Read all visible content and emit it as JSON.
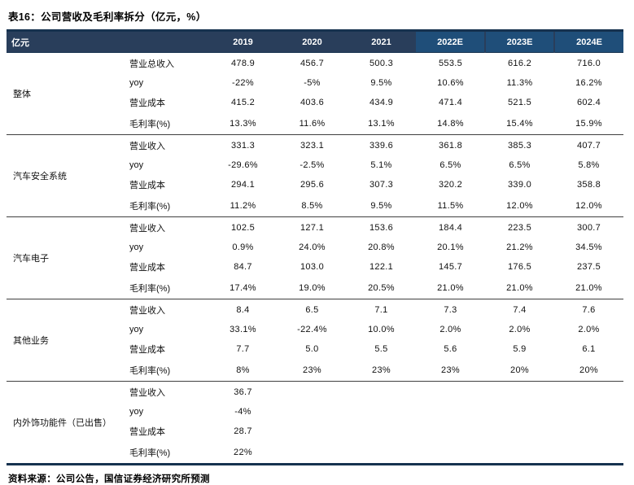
{
  "title": "表16：公司营收及毛利率拆分（亿元，%）",
  "source": "资料来源：公司公告，国信证券经济研究所预测",
  "colors": {
    "header_dark": "#293e5b",
    "header_light": "#1f4e79",
    "line_navy": "#16324f"
  },
  "header": {
    "unit_label": "亿元",
    "years": [
      "2019",
      "2020",
      "2021",
      "2022E",
      "2023E",
      "2024E"
    ]
  },
  "sections": [
    {
      "group": "整体",
      "rows": [
        {
          "label": "营业总收入",
          "values": [
            "478.9",
            "456.7",
            "500.3",
            "553.5",
            "616.2",
            "716.0"
          ]
        },
        {
          "label": "yoy",
          "values": [
            "-22%",
            "-5%",
            "9.5%",
            "10.6%",
            "11.3%",
            "16.2%"
          ]
        },
        {
          "label": "营业成本",
          "values": [
            "415.2",
            "403.6",
            "434.9",
            "471.4",
            "521.5",
            "602.4"
          ]
        },
        {
          "label": "毛利率(%)",
          "values": [
            "13.3%",
            "11.6%",
            "13.1%",
            "14.8%",
            "15.4%",
            "15.9%"
          ]
        }
      ]
    },
    {
      "group": "汽车安全系统",
      "rows": [
        {
          "label": "营业收入",
          "values": [
            "331.3",
            "323.1",
            "339.6",
            "361.8",
            "385.3",
            "407.7"
          ]
        },
        {
          "label": "yoy",
          "values": [
            "-29.6%",
            "-2.5%",
            "5.1%",
            "6.5%",
            "6.5%",
            "5.8%"
          ]
        },
        {
          "label": "营业成本",
          "values": [
            "294.1",
            "295.6",
            "307.3",
            "320.2",
            "339.0",
            "358.8"
          ]
        },
        {
          "label": "毛利率(%)",
          "values": [
            "11.2%",
            "8.5%",
            "9.5%",
            "11.5%",
            "12.0%",
            "12.0%"
          ]
        }
      ]
    },
    {
      "group": "汽车电子",
      "rows": [
        {
          "label": "营业收入",
          "values": [
            "102.5",
            "127.1",
            "153.6",
            "184.4",
            "223.5",
            "300.7"
          ]
        },
        {
          "label": "yoy",
          "values": [
            "0.9%",
            "24.0%",
            "20.8%",
            "20.1%",
            "21.2%",
            "34.5%"
          ]
        },
        {
          "label": "营业成本",
          "values": [
            "84.7",
            "103.0",
            "122.1",
            "145.7",
            "176.5",
            "237.5"
          ]
        },
        {
          "label": "毛利率(%)",
          "values": [
            "17.4%",
            "19.0%",
            "20.5%",
            "21.0%",
            "21.0%",
            "21.0%"
          ]
        }
      ]
    },
    {
      "group": "其他业务",
      "rows": [
        {
          "label": "营业收入",
          "values": [
            "8.4",
            "6.5",
            "7.1",
            "7.3",
            "7.4",
            "7.6"
          ]
        },
        {
          "label": "yoy",
          "values": [
            "33.1%",
            "-22.4%",
            "10.0%",
            "2.0%",
            "2.0%",
            "2.0%"
          ]
        },
        {
          "label": "营业成本",
          "values": [
            "7.7",
            "5.0",
            "5.5",
            "5.6",
            "5.9",
            "6.1"
          ]
        },
        {
          "label": "毛利率(%)",
          "values": [
            "8%",
            "23%",
            "23%",
            "23%",
            "20%",
            "20%"
          ]
        }
      ]
    },
    {
      "group": "内外饰功能件（已出售）",
      "rows": [
        {
          "label": "营业收入",
          "values": [
            "36.7",
            "",
            "",
            "",
            "",
            ""
          ]
        },
        {
          "label": "yoy",
          "values": [
            "-4%",
            "",
            "",
            "",
            "",
            ""
          ]
        },
        {
          "label": "营业成本",
          "values": [
            "28.7",
            "",
            "",
            "",
            "",
            ""
          ]
        },
        {
          "label": "毛利率(%)",
          "values": [
            "22%",
            "",
            "",
            "",
            "",
            ""
          ]
        }
      ]
    }
  ]
}
